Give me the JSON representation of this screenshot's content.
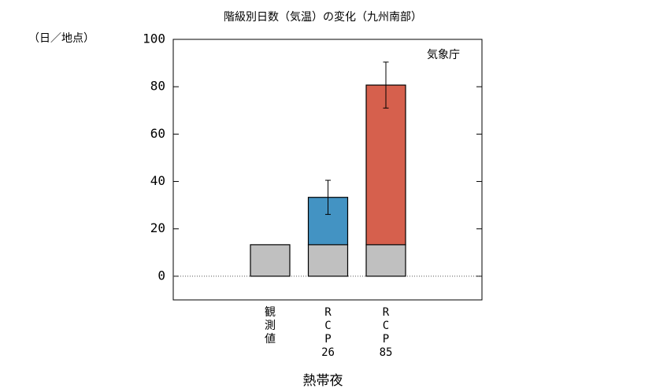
{
  "chart_data": {
    "type": "stacked-bar",
    "title": "階級別日数（気温）の変化（九州南部）",
    "y_unit_label": "（日／地点）",
    "source": "気象庁",
    "xlabel": "熱帯夜",
    "categories": [
      [
        "観",
        "測",
        "値"
      ],
      [
        "R",
        "C",
        "P",
        "26"
      ],
      [
        "R",
        "C",
        "P",
        "85"
      ]
    ],
    "series": [
      {
        "color": "#c0c0c0",
        "values": [
          13.3,
          13.3,
          13.3
        ]
      },
      {
        "colors": [
          null,
          "#4393c3",
          "#d6604d"
        ],
        "values": [
          null,
          20,
          67.4
        ],
        "errors": [
          null,
          7.2,
          9.7
        ]
      }
    ],
    "ylim": [
      -10,
      100
    ],
    "yticks": [
      0,
      20,
      40,
      60,
      80,
      100
    ],
    "zero_line": true
  }
}
